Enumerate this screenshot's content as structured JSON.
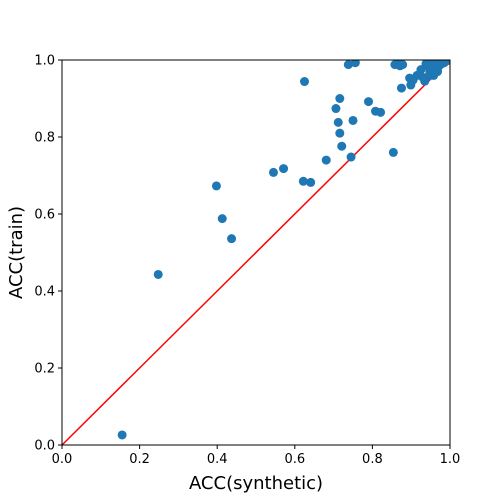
{
  "chart_data": {
    "type": "scatter",
    "title": "",
    "xlabel": "ACC(synthetic)",
    "ylabel": "ACC(train)",
    "xlim": [
      0.0,
      1.0
    ],
    "ylim": [
      0.0,
      1.0
    ],
    "xticks": [
      "0.0",
      "0.2",
      "0.4",
      "0.6",
      "0.8",
      "1.0"
    ],
    "yticks": [
      "0.0",
      "0.2",
      "0.4",
      "0.6",
      "0.8",
      "1.0"
    ],
    "grid": false,
    "legend": "none",
    "point_color": "#1f77b4",
    "reference_line": {
      "from": [
        0.0,
        0.0
      ],
      "to": [
        1.0,
        1.0
      ],
      "color": "#ff0000"
    },
    "series": [
      {
        "x": [
          0.155,
          0.248,
          0.398,
          0.413,
          0.437,
          0.545,
          0.571,
          0.622,
          0.641,
          0.625,
          0.681,
          0.706,
          0.712,
          0.716,
          0.716,
          0.721,
          0.738,
          0.745,
          0.75,
          0.756,
          0.79,
          0.808,
          0.821,
          0.854,
          0.858,
          0.866,
          0.871,
          0.875,
          0.878,
          0.896,
          0.899,
          0.905,
          0.915,
          0.925,
          0.93,
          0.935,
          0.938,
          0.942,
          0.948,
          0.952,
          0.955,
          0.958,
          0.961,
          0.965,
          0.968,
          0.972,
          0.975,
          0.978,
          0.982,
          0.985,
          0.988,
          0.991,
          0.994,
          0.997,
          0.945,
          0.96,
          0.97
        ],
        "y": [
          0.026,
          0.443,
          0.673,
          0.588,
          0.536,
          0.708,
          0.718,
          0.685,
          0.682,
          0.944,
          0.74,
          0.874,
          0.838,
          0.9,
          0.81,
          0.776,
          0.988,
          0.748,
          0.843,
          0.993,
          0.892,
          0.867,
          0.864,
          0.76,
          0.988,
          0.99,
          0.985,
          0.927,
          0.988,
          0.953,
          0.935,
          0.948,
          0.96,
          0.975,
          0.955,
          0.945,
          0.99,
          0.985,
          0.97,
          0.975,
          0.995,
          0.96,
          0.98,
          0.99,
          0.97,
          0.985,
          0.995,
          0.99,
          0.998,
          0.993,
          0.996,
          0.998,
          0.999,
          1.0,
          0.958,
          0.965,
          0.988
        ]
      }
    ]
  }
}
